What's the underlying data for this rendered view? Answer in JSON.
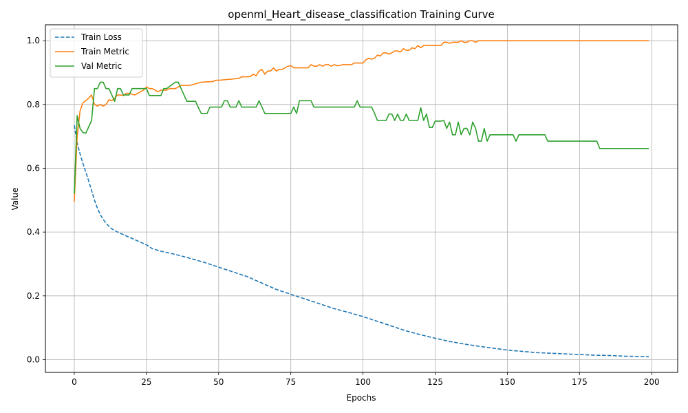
{
  "chart_data": {
    "type": "line",
    "title": "openml_Heart_disease_classification Training Curve",
    "xlabel": "Epochs",
    "ylabel": "Value",
    "xlim": [
      -10,
      209
    ],
    "ylim": [
      -0.04,
      1.05
    ],
    "xticks": [
      0,
      25,
      50,
      75,
      100,
      125,
      150,
      175,
      200
    ],
    "xtick_labels": [
      "0",
      "25",
      "50",
      "75",
      "100",
      "125",
      "150",
      "175",
      "200"
    ],
    "yticks": [
      0.0,
      0.2,
      0.4,
      0.6,
      0.8,
      1.0
    ],
    "ytick_labels": [
      "0.0",
      "0.2",
      "0.4",
      "0.6",
      "0.8",
      "1.0"
    ],
    "grid": true,
    "legend_position": "upper-left",
    "series": [
      {
        "name": "Train Loss",
        "color": "#1f77b4",
        "style": "dashed",
        "points": [
          [
            0,
            0.735
          ],
          [
            1,
            0.68
          ],
          [
            2,
            0.645
          ],
          [
            3,
            0.615
          ],
          [
            4,
            0.588
          ],
          [
            5,
            0.56
          ],
          [
            6,
            0.53
          ],
          [
            7,
            0.5
          ],
          [
            8,
            0.475
          ],
          [
            9,
            0.455
          ],
          [
            10,
            0.44
          ],
          [
            11,
            0.428
          ],
          [
            12,
            0.418
          ],
          [
            13,
            0.41
          ],
          [
            15,
            0.4
          ],
          [
            18,
            0.388
          ],
          [
            20,
            0.38
          ],
          [
            25,
            0.36
          ],
          [
            27,
            0.348
          ],
          [
            30,
            0.34
          ],
          [
            35,
            0.33
          ],
          [
            40,
            0.318
          ],
          [
            45,
            0.305
          ],
          [
            50,
            0.29
          ],
          [
            55,
            0.275
          ],
          [
            60,
            0.26
          ],
          [
            65,
            0.24
          ],
          [
            70,
            0.22
          ],
          [
            75,
            0.205
          ],
          [
            80,
            0.19
          ],
          [
            85,
            0.175
          ],
          [
            90,
            0.16
          ],
          [
            95,
            0.148
          ],
          [
            100,
            0.135
          ],
          [
            105,
            0.12
          ],
          [
            110,
            0.105
          ],
          [
            115,
            0.09
          ],
          [
            120,
            0.078
          ],
          [
            125,
            0.067
          ],
          [
            130,
            0.057
          ],
          [
            135,
            0.049
          ],
          [
            140,
            0.042
          ],
          [
            145,
            0.036
          ],
          [
            150,
            0.03
          ],
          [
            155,
            0.026
          ],
          [
            160,
            0.022
          ],
          [
            165,
            0.02
          ],
          [
            170,
            0.018
          ],
          [
            175,
            0.016
          ],
          [
            180,
            0.014
          ],
          [
            185,
            0.013
          ],
          [
            190,
            0.011
          ],
          [
            195,
            0.01
          ],
          [
            199,
            0.009
          ]
        ]
      },
      {
        "name": "Train Metric",
        "color": "#ff7f0e",
        "style": "solid",
        "points": [
          [
            0,
            0.495
          ],
          [
            1,
            0.7
          ],
          [
            2,
            0.78
          ],
          [
            3,
            0.805
          ],
          [
            4,
            0.812
          ],
          [
            5,
            0.82
          ],
          [
            6,
            0.83
          ],
          [
            7,
            0.8
          ],
          [
            8,
            0.795
          ],
          [
            9,
            0.8
          ],
          [
            10,
            0.795
          ],
          [
            11,
            0.8
          ],
          [
            12,
            0.815
          ],
          [
            13,
            0.812
          ],
          [
            14,
            0.82
          ],
          [
            15,
            0.83
          ],
          [
            16,
            0.83
          ],
          [
            17,
            0.828
          ],
          [
            18,
            0.835
          ],
          [
            19,
            0.835
          ],
          [
            20,
            0.832
          ],
          [
            21,
            0.83
          ],
          [
            22,
            0.835
          ],
          [
            23,
            0.84
          ],
          [
            24,
            0.845
          ],
          [
            25,
            0.855
          ],
          [
            26,
            0.85
          ],
          [
            27,
            0.85
          ],
          [
            28,
            0.845
          ],
          [
            29,
            0.84
          ],
          [
            30,
            0.845
          ],
          [
            31,
            0.845
          ],
          [
            32,
            0.845
          ],
          [
            33,
            0.85
          ],
          [
            35,
            0.85
          ],
          [
            36,
            0.855
          ],
          [
            37,
            0.86
          ],
          [
            38,
            0.86
          ],
          [
            40,
            0.86
          ],
          [
            42,
            0.865
          ],
          [
            44,
            0.87
          ],
          [
            48,
            0.872
          ],
          [
            49,
            0.876
          ],
          [
            50,
            0.876
          ],
          [
            55,
            0.88
          ],
          [
            57,
            0.882
          ],
          [
            58,
            0.887
          ],
          [
            60,
            0.887
          ],
          [
            61,
            0.888
          ],
          [
            62,
            0.895
          ],
          [
            63,
            0.89
          ],
          [
            64,
            0.905
          ],
          [
            65,
            0.91
          ],
          [
            66,
            0.895
          ],
          [
            67,
            0.905
          ],
          [
            68,
            0.905
          ],
          [
            69,
            0.915
          ],
          [
            70,
            0.905
          ],
          [
            71,
            0.91
          ],
          [
            72,
            0.91
          ],
          [
            73,
            0.915
          ],
          [
            74,
            0.92
          ],
          [
            75,
            0.922
          ],
          [
            76,
            0.915
          ],
          [
            78,
            0.915
          ],
          [
            80,
            0.915
          ],
          [
            81,
            0.915
          ],
          [
            82,
            0.925
          ],
          [
            83,
            0.92
          ],
          [
            84,
            0.92
          ],
          [
            85,
            0.925
          ],
          [
            86,
            0.92
          ],
          [
            87,
            0.925
          ],
          [
            88,
            0.925
          ],
          [
            89,
            0.92
          ],
          [
            90,
            0.925
          ],
          [
            91,
            0.922
          ],
          [
            92,
            0.922
          ],
          [
            93,
            0.925
          ],
          [
            95,
            0.925
          ],
          [
            96,
            0.925
          ],
          [
            97,
            0.93
          ],
          [
            98,
            0.93
          ],
          [
            100,
            0.93
          ],
          [
            101,
            0.94
          ],
          [
            102,
            0.945
          ],
          [
            103,
            0.942
          ],
          [
            104,
            0.945
          ],
          [
            105,
            0.955
          ],
          [
            106,
            0.952
          ],
          [
            107,
            0.962
          ],
          [
            108,
            0.962
          ],
          [
            109,
            0.958
          ],
          [
            110,
            0.962
          ],
          [
            111,
            0.968
          ],
          [
            112,
            0.968
          ],
          [
            113,
            0.965
          ],
          [
            114,
            0.975
          ],
          [
            115,
            0.97
          ],
          [
            116,
            0.97
          ],
          [
            117,
            0.978
          ],
          [
            118,
            0.975
          ],
          [
            119,
            0.985
          ],
          [
            120,
            0.978
          ],
          [
            121,
            0.985
          ],
          [
            122,
            0.985
          ],
          [
            124,
            0.985
          ],
          [
            127,
            0.985
          ],
          [
            128,
            0.995
          ],
          [
            129,
            0.995
          ],
          [
            130,
            0.992
          ],
          [
            131,
            0.995
          ],
          [
            133,
            0.995
          ],
          [
            134,
            1.0
          ],
          [
            135,
            0.995
          ],
          [
            136,
            0.995
          ],
          [
            137,
            1.0
          ],
          [
            138,
            1.0
          ],
          [
            139,
            0.995
          ],
          [
            140,
            1.0
          ],
          [
            145,
            1.0
          ],
          [
            150,
            1.0
          ],
          [
            160,
            1.0
          ],
          [
            170,
            1.0
          ],
          [
            180,
            1.0
          ],
          [
            190,
            1.0
          ],
          [
            199,
            1.0
          ]
        ]
      },
      {
        "name": "Val Metric",
        "color": "#2ca02c",
        "style": "solid",
        "points": [
          [
            0,
            0.52
          ],
          [
            1,
            0.765
          ],
          [
            2,
            0.725
          ],
          [
            3,
            0.712
          ],
          [
            4,
            0.71
          ],
          [
            5,
            0.73
          ],
          [
            6,
            0.75
          ],
          [
            7,
            0.85
          ],
          [
            8,
            0.85
          ],
          [
            9,
            0.87
          ],
          [
            10,
            0.87
          ],
          [
            11,
            0.85
          ],
          [
            12,
            0.85
          ],
          [
            13,
            0.83
          ],
          [
            14,
            0.81
          ],
          [
            15,
            0.85
          ],
          [
            16,
            0.85
          ],
          [
            17,
            0.83
          ],
          [
            18,
            0.83
          ],
          [
            19,
            0.83
          ],
          [
            20,
            0.85
          ],
          [
            25,
            0.85
          ],
          [
            26,
            0.828
          ],
          [
            27,
            0.828
          ],
          [
            30,
            0.828
          ],
          [
            31,
            0.85
          ],
          [
            32,
            0.85
          ],
          [
            35,
            0.87
          ],
          [
            36,
            0.87
          ],
          [
            37,
            0.85
          ],
          [
            38,
            0.83
          ],
          [
            39,
            0.81
          ],
          [
            42,
            0.81
          ],
          [
            43,
            0.79
          ],
          [
            44,
            0.772
          ],
          [
            46,
            0.772
          ],
          [
            47,
            0.792
          ],
          [
            50,
            0.792
          ],
          [
            51,
            0.792
          ],
          [
            52,
            0.812
          ],
          [
            53,
            0.812
          ],
          [
            54,
            0.792
          ],
          [
            56,
            0.792
          ],
          [
            57,
            0.812
          ],
          [
            58,
            0.792
          ],
          [
            60,
            0.792
          ],
          [
            63,
            0.792
          ],
          [
            64,
            0.812
          ],
          [
            65,
            0.792
          ],
          [
            66,
            0.772
          ],
          [
            70,
            0.772
          ],
          [
            75,
            0.772
          ],
          [
            76,
            0.792
          ],
          [
            77,
            0.772
          ],
          [
            78,
            0.812
          ],
          [
            80,
            0.812
          ],
          [
            82,
            0.812
          ],
          [
            83,
            0.792
          ],
          [
            85,
            0.792
          ],
          [
            90,
            0.792
          ],
          [
            95,
            0.792
          ],
          [
            97,
            0.792
          ],
          [
            98,
            0.812
          ],
          [
            99,
            0.792
          ],
          [
            100,
            0.792
          ],
          [
            103,
            0.792
          ],
          [
            104,
            0.772
          ],
          [
            105,
            0.75
          ],
          [
            108,
            0.75
          ],
          [
            109,
            0.77
          ],
          [
            110,
            0.77
          ],
          [
            111,
            0.75
          ],
          [
            112,
            0.77
          ],
          [
            113,
            0.75
          ],
          [
            114,
            0.75
          ],
          [
            115,
            0.77
          ],
          [
            116,
            0.75
          ],
          [
            118,
            0.75
          ],
          [
            119,
            0.75
          ],
          [
            120,
            0.79
          ],
          [
            121,
            0.75
          ],
          [
            122,
            0.77
          ],
          [
            123,
            0.728
          ],
          [
            124,
            0.728
          ],
          [
            125,
            0.748
          ],
          [
            127,
            0.748
          ],
          [
            128,
            0.75
          ],
          [
            129,
            0.725
          ],
          [
            130,
            0.745
          ],
          [
            131,
            0.705
          ],
          [
            132,
            0.705
          ],
          [
            133,
            0.745
          ],
          [
            134,
            0.705
          ],
          [
            135,
            0.725
          ],
          [
            136,
            0.725
          ],
          [
            137,
            0.705
          ],
          [
            138,
            0.745
          ],
          [
            139,
            0.725
          ],
          [
            140,
            0.685
          ],
          [
            141,
            0.685
          ],
          [
            142,
            0.725
          ],
          [
            143,
            0.685
          ],
          [
            144,
            0.705
          ],
          [
            145,
            0.705
          ],
          [
            150,
            0.705
          ],
          [
            152,
            0.705
          ],
          [
            153,
            0.685
          ],
          [
            154,
            0.705
          ],
          [
            160,
            0.705
          ],
          [
            163,
            0.705
          ],
          [
            164,
            0.685
          ],
          [
            170,
            0.685
          ],
          [
            175,
            0.685
          ],
          [
            180,
            0.685
          ],
          [
            181,
            0.685
          ],
          [
            182,
            0.662
          ],
          [
            190,
            0.662
          ],
          [
            199,
            0.662
          ]
        ]
      }
    ]
  }
}
